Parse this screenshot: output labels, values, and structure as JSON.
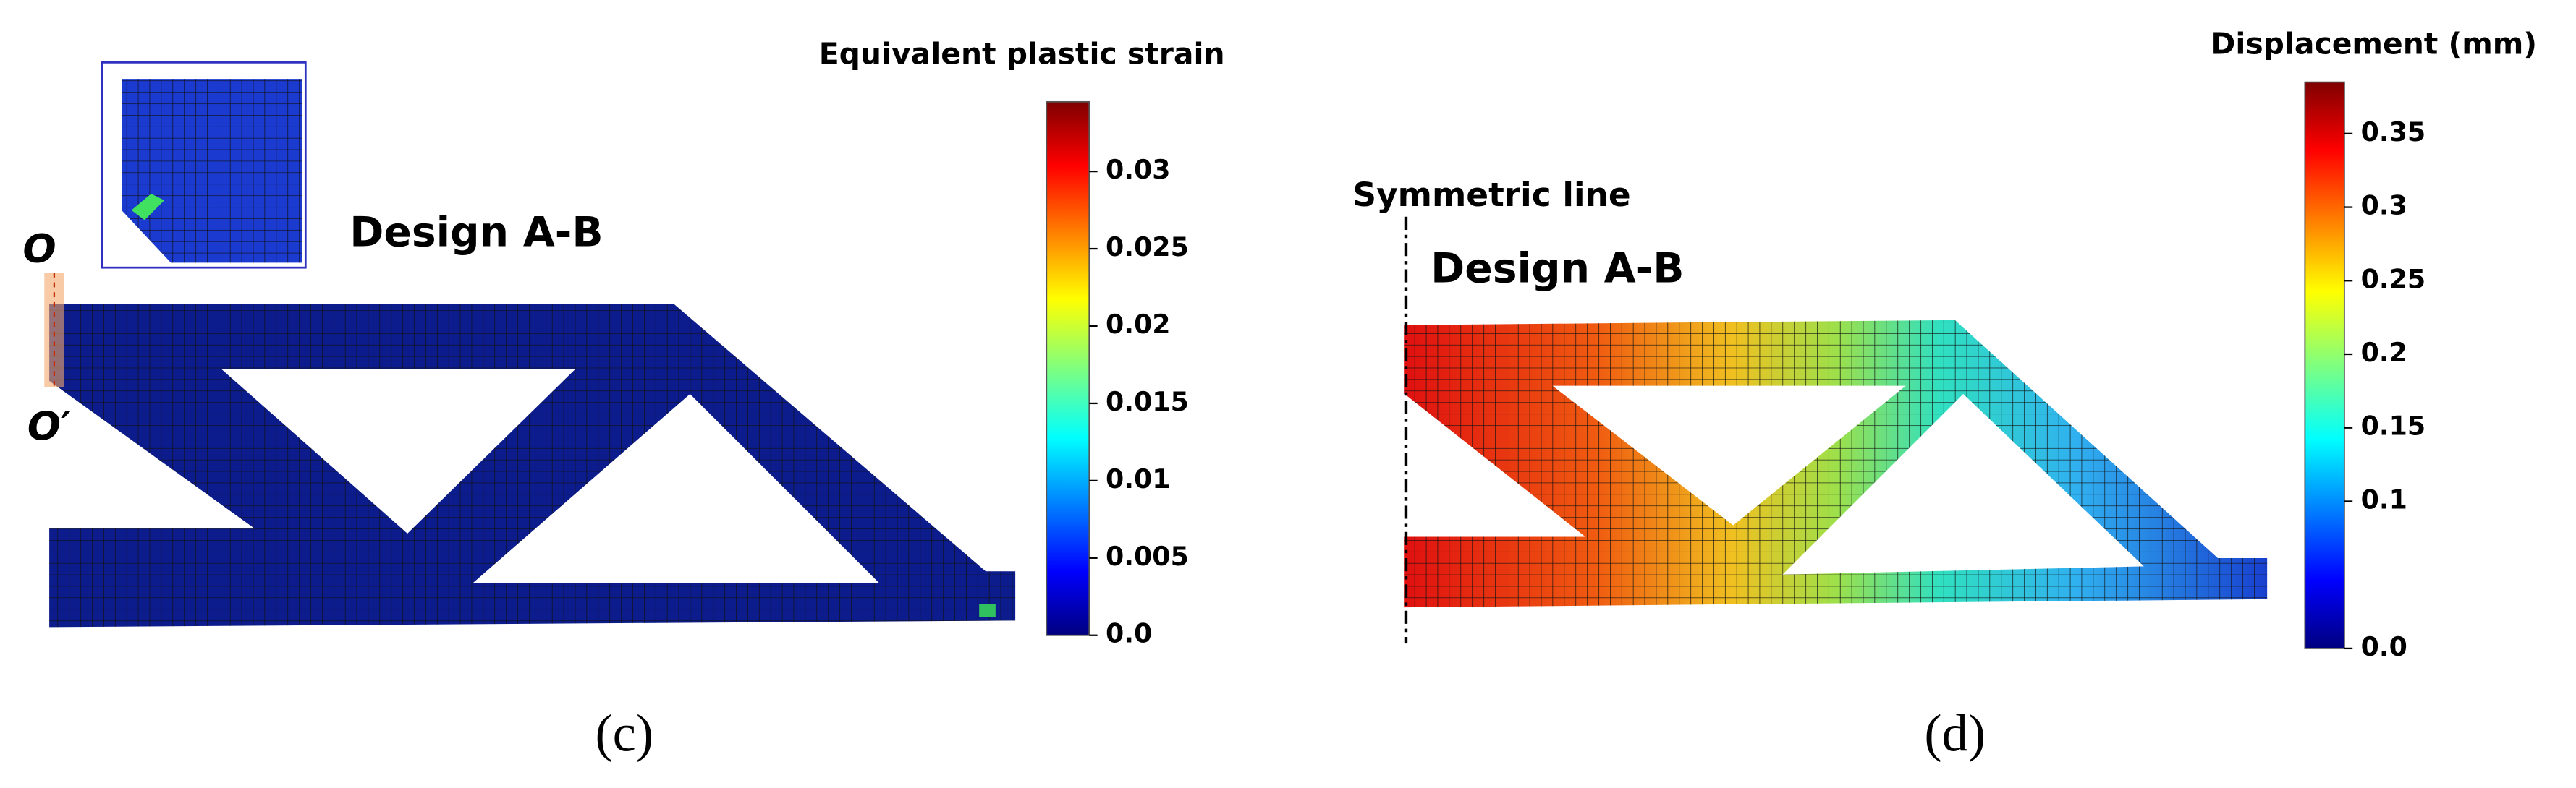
{
  "panels": [
    {
      "label": "(c)",
      "design": "Design A-B",
      "annotations": [
        "O",
        "O′"
      ],
      "colorbar": {
        "title": "Equivalent plastic strain",
        "lim": [
          0,
          0.0345
        ],
        "ticks": [
          {
            "value": 0,
            "label": "0.0"
          },
          0.005,
          0.01,
          0.015,
          0.02,
          0.025,
          0.03
        ]
      }
    },
    {
      "label": "(d)",
      "design": "Design A-B",
      "annotations": [
        "Symmetric line"
      ],
      "colorbar": {
        "title": "Displacement (mm)",
        "lim": [
          0,
          0.385
        ],
        "ticks": [
          {
            "value": 0,
            "label": "0.0"
          },
          0.1,
          0.15,
          0.2,
          0.25,
          0.3,
          0.35
        ]
      }
    }
  ]
}
